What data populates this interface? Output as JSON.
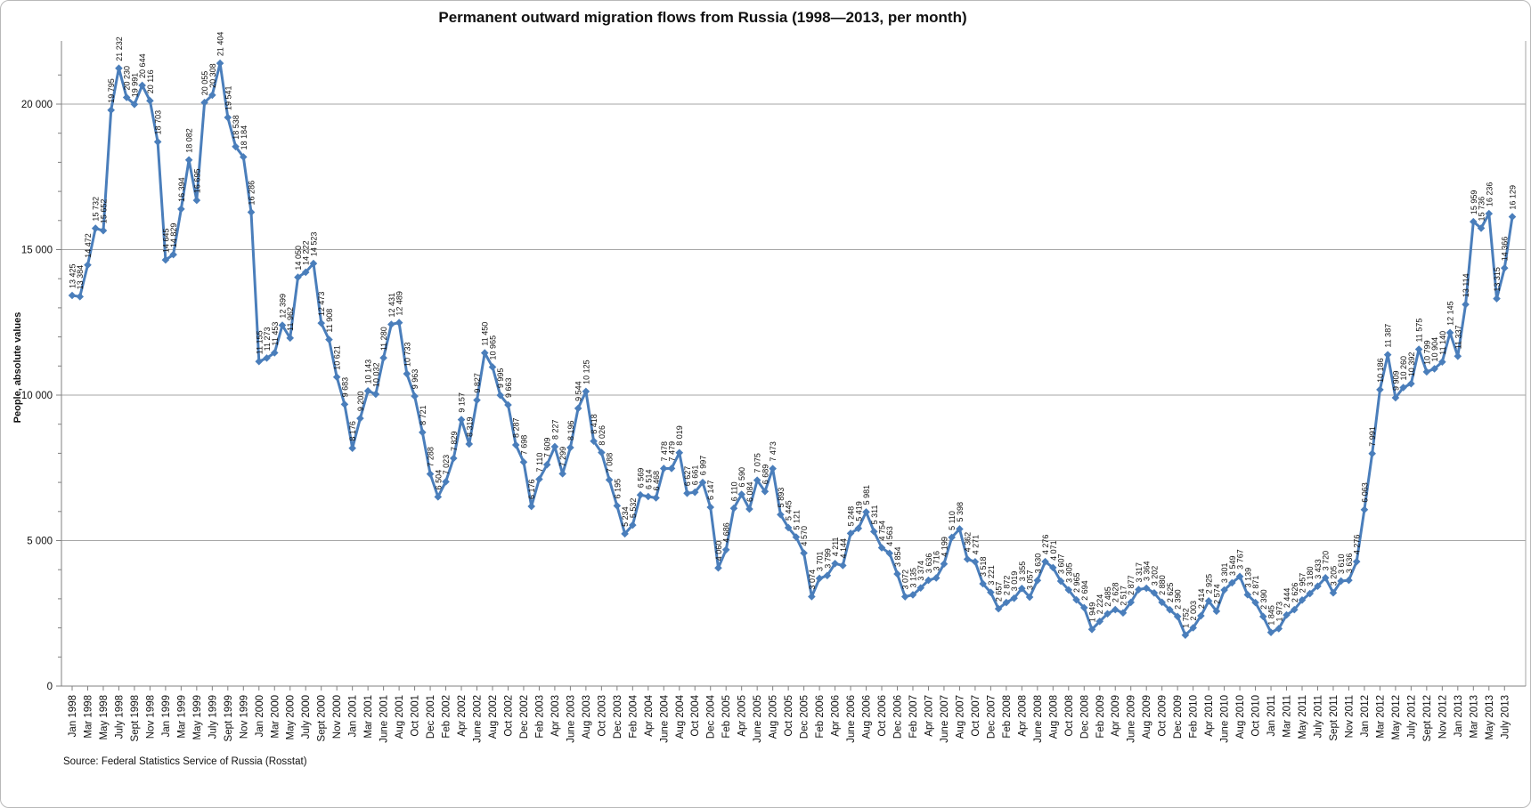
{
  "chart_data": {
    "type": "line",
    "title": "Permanent outward migration flows from Russia (1998—2013, per month)",
    "ylabel": "People, absolute values",
    "source": "Source: Federal Statistics Service of Russia (Rosstat)",
    "grid": true,
    "legend": "none",
    "line_color": "#4A7EBB",
    "marker": "diamond",
    "data_label_color": "#111111",
    "gridline_color": "#a6a6a6",
    "axis_color": "#808080",
    "ylim": [
      0,
      22000
    ],
    "y_ticks": [
      0,
      5000,
      10000,
      15000,
      20000
    ],
    "label_interval": 2,
    "x_tick_labels": [
      "Jan 1998",
      "Mar 1998",
      "May 1998",
      "July 1998",
      "Sept 1998",
      "Nov 1998",
      "Jan 1999",
      "Mar 1999",
      "May 1999",
      "July 1999",
      "Sept 1999",
      "Nov 1999",
      "Jan 2000",
      "Mar 2000",
      "May 2000",
      "July 2000",
      "Sept 2000",
      "Nov 2000",
      "Jan 2001",
      "Mar 2001",
      "June 2001",
      "Aug 2001",
      "Oct 2001",
      "Dec 2001",
      "Feb 2002",
      "Apr 2002",
      "June 2002",
      "Aug 2002",
      "Oct 2002",
      "Dec 2002",
      "Feb 2003",
      "Apr 2003",
      "June 2003",
      "Aug 2003",
      "Oct 2003",
      "Dec 2003",
      "Feb 2004",
      "Apr 2004",
      "June 2004",
      "Aug 2004",
      "Oct 2004",
      "Dec 2004",
      "Feb 2005",
      "Apr 2005",
      "June 2005",
      "Aug 2005",
      "Oct 2005",
      "Dec 2005",
      "Feb 2006",
      "Apr 2006",
      "June 2006",
      "Aug 2006",
      "Oct 2006",
      "Dec 2006",
      "Feb 2007",
      "Apr 2007",
      "June 2007",
      "Aug 2007",
      "Oct 2007",
      "Dec 2007",
      "Feb 2008",
      "Apr 2008",
      "June 2008",
      "Aug 2008",
      "Oct 2008",
      "Dec 2008",
      "Feb 2009",
      "Apr 2009",
      "June 2009",
      "Aug 2009",
      "Oct 2009",
      "Dec 2009",
      "Feb 2010",
      "Apr 2010",
      "June 2010",
      "Aug 2010",
      "Oct 2010",
      "Jan 2011",
      "Mar 2011",
      "May 2011",
      "July 2011",
      "Sept 2011",
      "Nov 2011",
      "Jan 2012",
      "Mar 2012",
      "May 2012",
      "July 2012",
      "Sept 2012",
      "Nov 2012",
      "Jan 2013",
      "Mar 2013",
      "May 2013",
      "July 2013"
    ],
    "values": [
      13425,
      13384,
      14472,
      15732,
      15652,
      19795,
      21232,
      20230,
      19991,
      20644,
      20116,
      18703,
      14645,
      14829,
      16394,
      18082,
      16695,
      20055,
      20308,
      21404,
      19541,
      18538,
      18184,
      16286,
      11155,
      11273,
      11453,
      12399,
      11962,
      14050,
      14222,
      14523,
      12473,
      11908,
      10621,
      9683,
      8176,
      9200,
      10143,
      10032,
      11280,
      12431,
      12489,
      10733,
      9963,
      8721,
      7288,
      6504,
      7023,
      7829,
      9157,
      8319,
      9827,
      11450,
      10965,
      9995,
      9663,
      8287,
      7698,
      6176,
      7110,
      7609,
      8227,
      7299,
      8196,
      9544,
      10125,
      8418,
      8026,
      7088,
      6195,
      5234,
      5532,
      6569,
      6514,
      6468,
      7478,
      7479,
      8019,
      6627,
      6661,
      6997,
      6147,
      4060,
      4686,
      6110,
      6590,
      6084,
      7075,
      6689,
      7473,
      5893,
      5445,
      5121,
      4570,
      3074,
      3701,
      3799,
      4211,
      4144,
      5248,
      5419,
      5981,
      5311,
      4754,
      4563,
      3854,
      3072,
      3135,
      3374,
      3636,
      3716,
      4199,
      5110,
      5398,
      4362,
      4271,
      3518,
      3221,
      2657,
      2872,
      3019,
      3355,
      3057,
      3630,
      4276,
      4071,
      3607,
      3305,
      2965,
      2694,
      1949,
      2224,
      2485,
      2628,
      2517,
      2877,
      3317,
      3364,
      3202,
      2880,
      2625,
      2390,
      1752,
      2003,
      2414,
      2925,
      2574,
      3301,
      3549,
      3767,
      3139,
      2871,
      2390,
      1845,
      1973,
      2444,
      2626,
      2957,
      3180,
      3433,
      3720,
      3205,
      3610,
      3636,
      4276,
      6063,
      7991,
      10186,
      11387,
      9909,
      10260,
      10392,
      11575,
      10799,
      10904,
      11140,
      12145,
      11337,
      13114,
      15959,
      15736,
      16236,
      13315,
      14366,
      16129
    ]
  }
}
